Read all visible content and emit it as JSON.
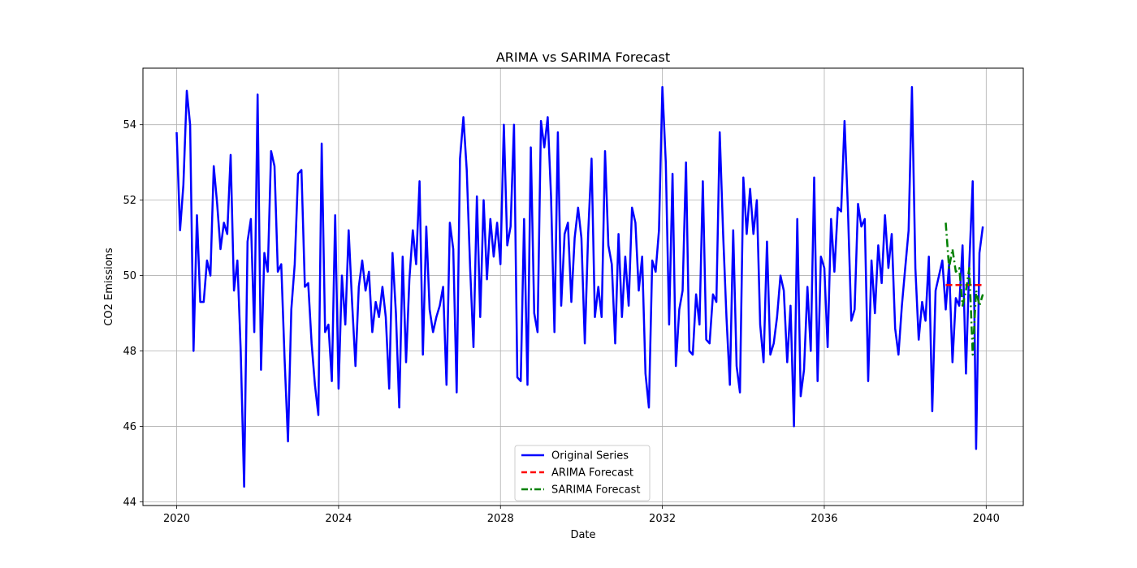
{
  "chart_data": {
    "type": "line",
    "title": "ARIMA vs SARIMA Forecast",
    "xlabel": "Date",
    "ylabel": "CO2 Emissions",
    "xlim": [
      "2019-03-01",
      "2040-12-01"
    ],
    "ylim": [
      43.9,
      55.5
    ],
    "x_ticks": [
      "2020",
      "2024",
      "2028",
      "2032",
      "2036",
      "2040"
    ],
    "y_ticks": [
      "44",
      "46",
      "48",
      "50",
      "52",
      "54"
    ],
    "grid": true,
    "legend": "lower-center",
    "series": [
      {
        "name": "Original Series",
        "color": "#0000ff",
        "style": "solid",
        "start": "2020-01",
        "frequency": "monthly",
        "values": [
          53.8,
          51.2,
          52.4,
          54.9,
          54.0,
          48.0,
          51.6,
          49.3,
          49.3,
          50.4,
          50.0,
          52.9,
          51.9,
          50.7,
          51.4,
          51.1,
          53.2,
          49.6,
          50.4,
          48.0,
          44.4,
          50.9,
          51.5,
          48.5,
          54.8,
          47.5,
          50.6,
          50.1,
          53.3,
          52.9,
          50.1,
          50.3,
          47.8,
          45.6,
          49.1,
          50.3,
          52.7,
          52.8,
          49.7,
          49.8,
          48.2,
          47.1,
          46.3,
          53.5,
          48.5,
          48.7,
          47.2,
          51.6,
          47.0,
          50.0,
          48.7,
          51.2,
          49.3,
          47.6,
          49.7,
          50.4,
          49.6,
          50.1,
          48.5,
          49.3,
          48.9,
          49.7,
          48.9,
          47.0,
          50.6,
          49.0,
          46.5,
          50.5,
          47.7,
          49.9,
          51.2,
          50.3,
          52.5,
          47.9,
          51.3,
          49.1,
          48.5,
          48.9,
          49.2,
          49.7,
          47.1,
          51.4,
          50.7,
          46.9,
          53.1,
          54.2,
          52.8,
          50.2,
          48.1,
          52.1,
          48.9,
          52.0,
          49.9,
          51.5,
          50.5,
          51.4,
          50.3,
          54.0,
          50.8,
          51.3,
          54.0,
          47.3,
          47.2,
          51.5,
          47.1,
          53.4,
          49.0,
          48.5,
          54.1,
          53.4,
          54.2,
          52.1,
          48.5,
          53.8,
          49.2,
          51.1,
          51.4,
          49.3,
          51.0,
          51.8,
          51.0,
          48.2,
          51.1,
          53.1,
          48.9,
          49.7,
          48.9,
          53.3,
          50.8,
          50.3,
          48.2,
          51.1,
          48.9,
          50.5,
          49.2,
          51.8,
          51.4,
          49.6,
          50.5,
          47.4,
          46.5,
          50.4,
          50.1,
          51.2,
          55.0,
          53.0,
          48.7,
          52.7,
          47.6,
          49.1,
          49.6,
          53.0,
          48.0,
          47.9,
          49.5,
          48.7,
          52.5,
          48.3,
          48.2,
          49.5,
          49.3,
          53.8,
          51.1,
          48.9,
          47.1,
          51.2,
          47.6,
          46.9,
          52.6,
          51.1,
          52.3,
          51.1,
          52.0,
          48.7,
          47.7,
          50.9,
          47.9,
          48.2,
          48.9,
          50.0,
          49.6,
          47.7,
          49.2,
          46.0,
          51.5,
          46.8,
          47.5,
          49.7,
          48.0,
          52.6,
          47.2,
          50.5,
          50.2,
          48.1,
          51.5,
          50.1,
          51.8,
          51.7,
          54.1,
          51.8,
          48.8,
          49.1,
          51.9,
          51.3,
          51.5,
          47.2,
          50.4,
          49.0,
          50.8,
          49.8,
          51.6,
          50.2,
          51.1,
          48.6,
          47.9,
          49.2,
          50.2,
          51.2,
          55.0,
          50.2,
          48.3,
          49.3,
          48.8,
          50.5,
          46.4,
          49.6,
          50.0,
          50.4,
          49.1,
          50.3,
          47.7,
          49.4,
          49.2,
          50.8,
          47.4,
          50.3,
          52.5,
          45.4,
          50.6,
          51.3
        ]
      },
      {
        "name": "ARIMA Forecast",
        "color": "#ff0000",
        "style": "dashed",
        "start": "2039-01",
        "frequency": "monthly",
        "values": [
          49.75,
          49.75,
          49.75,
          49.75,
          49.75,
          49.75,
          49.75,
          49.75,
          49.75,
          49.75,
          49.75,
          49.75
        ]
      },
      {
        "name": "SARIMA Forecast",
        "color": "#008000",
        "style": "dashdot",
        "start": "2039-01",
        "frequency": "monthly",
        "values": [
          51.4,
          50.2,
          50.7,
          50.1,
          50.2,
          49.2,
          49.6,
          50.2,
          47.9,
          49.6,
          49.2,
          49.5
        ]
      }
    ]
  }
}
